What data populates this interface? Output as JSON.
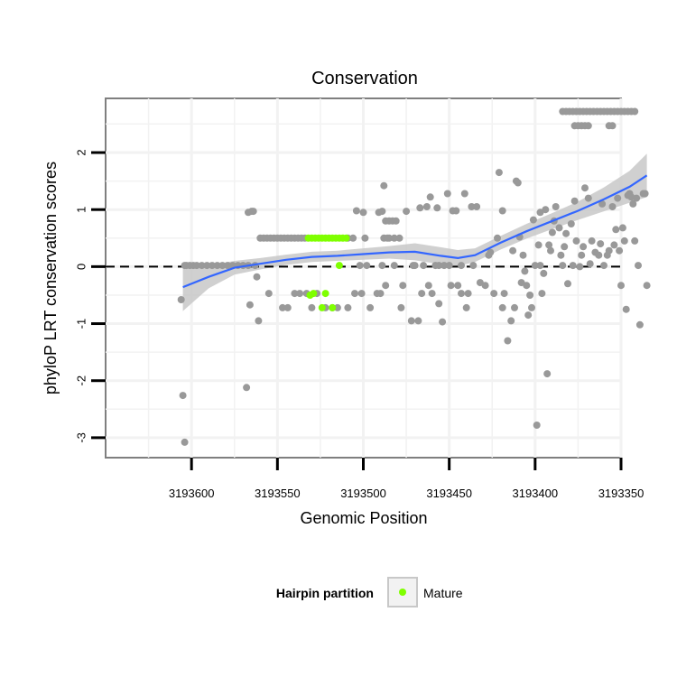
{
  "chart_data": {
    "type": "scatter",
    "title": "Conservation",
    "xlabel": "Genomic Position",
    "ylabel": "phyloP LRT conservation scores",
    "x_reversed": true,
    "xlim": [
      3193350,
      3193650
    ],
    "ylim": [
      -3.35,
      2.95
    ],
    "x_ticks": [
      3193600,
      3193550,
      3193500,
      3193450,
      3193400,
      3193350
    ],
    "y_ticks": [
      -3,
      -2,
      -1,
      0,
      1,
      2
    ],
    "grid": true,
    "reference_line": {
      "y": 0,
      "style": "dashed"
    },
    "legend": {
      "title": "Hairpin partition",
      "placement": "bottom",
      "entries": [
        {
          "label": "Mature",
          "color": "#7fff00"
        }
      ]
    },
    "colors": {
      "points": "#999999",
      "mature": "#7fff00",
      "smooth": "#3366ff",
      "band": "#c8c8c8",
      "panel": "#ffffff",
      "grid": "#f2f2f2",
      "border": "#7f7f7f"
    },
    "series": [
      {
        "kind": "points",
        "color": "#999999",
        "points": [
          [
            3193606,
            -0.58
          ],
          [
            3193605,
            -2.26
          ],
          [
            3193604,
            -3.08
          ],
          [
            3193604,
            0.02
          ],
          [
            3193603,
            0.02
          ],
          [
            3193601,
            0.02
          ],
          [
            3193599,
            0.02
          ],
          [
            3193597,
            0.02
          ],
          [
            3193594,
            0.02
          ],
          [
            3193591,
            0.02
          ],
          [
            3193588,
            0.02
          ],
          [
            3193585,
            0.02
          ],
          [
            3193582,
            0.02
          ],
          [
            3193579,
            0.02
          ],
          [
            3193576,
            0.02
          ],
          [
            3193573,
            0.02
          ],
          [
            3193570,
            0.02
          ],
          [
            3193567,
            0.02
          ],
          [
            3193568,
            -2.12
          ],
          [
            3193567,
            0.95
          ],
          [
            3193566,
            -0.67
          ],
          [
            3193565,
            0.97
          ],
          [
            3193564,
            0.97
          ],
          [
            3193562,
            -0.18
          ],
          [
            3193561,
            -0.95
          ],
          [
            3193563,
            0.02
          ],
          [
            3193560,
            0.5
          ],
          [
            3193558,
            0.5
          ],
          [
            3193556,
            0.5
          ],
          [
            3193554,
            0.5
          ],
          [
            3193552,
            0.5
          ],
          [
            3193550,
            0.5
          ],
          [
            3193548,
            0.5
          ],
          [
            3193546,
            0.5
          ],
          [
            3193544,
            0.5
          ],
          [
            3193542,
            0.5
          ],
          [
            3193540,
            0.5
          ],
          [
            3193538,
            0.5
          ],
          [
            3193536,
            0.5
          ],
          [
            3193534,
            0.5
          ],
          [
            3193555,
            -0.47
          ],
          [
            3193547,
            -0.72
          ],
          [
            3193544,
            -0.72
          ],
          [
            3193540,
            -0.47
          ],
          [
            3193537,
            -0.47
          ],
          [
            3193533,
            -0.47
          ],
          [
            3193530,
            -0.72
          ],
          [
            3193527,
            -0.47
          ],
          [
            3193522,
            -0.72
          ],
          [
            3193518,
            -0.72
          ],
          [
            3193515,
            -0.72
          ],
          [
            3193509,
            0.5
          ],
          [
            3193506,
            0.5
          ],
          [
            3193502,
            0.02
          ],
          [
            3193509,
            -0.72
          ],
          [
            3193505,
            -0.47
          ],
          [
            3193501,
            -0.47
          ],
          [
            3193496,
            -0.72
          ],
          [
            3193492,
            -0.47
          ],
          [
            3193490,
            -0.47
          ],
          [
            3193487,
            -0.33
          ],
          [
            3193488,
            0.5
          ],
          [
            3193485,
            0.5
          ],
          [
            3193482,
            0.5
          ],
          [
            3193479,
            0.5
          ],
          [
            3193504,
            0.98
          ],
          [
            3193500,
            0.95
          ],
          [
            3193499,
            0.5
          ],
          [
            3193498,
            0.02
          ],
          [
            3193491,
            0.95
          ],
          [
            3193489,
            0.97
          ],
          [
            3193489,
            0.02
          ],
          [
            3193488,
            1.42
          ],
          [
            3193487,
            0.8
          ],
          [
            3193486,
            0.5
          ],
          [
            3193485,
            0.8
          ],
          [
            3193483,
            0.8
          ],
          [
            3193482,
            0.02
          ],
          [
            3193481,
            0.8
          ],
          [
            3193478,
            -0.72
          ],
          [
            3193477,
            -0.33
          ],
          [
            3193475,
            0.97
          ],
          [
            3193472,
            -0.95
          ],
          [
            3193471,
            0.02
          ],
          [
            3193470,
            0.02
          ],
          [
            3193467,
            1.03
          ],
          [
            3193468,
            -0.95
          ],
          [
            3193466,
            -0.47
          ],
          [
            3193465,
            0.02
          ],
          [
            3193463,
            1.05
          ],
          [
            3193462,
            -0.33
          ],
          [
            3193461,
            1.22
          ],
          [
            3193460,
            -0.47
          ],
          [
            3193457,
            1.03
          ],
          [
            3193458,
            0.02
          ],
          [
            3193456,
            0.02
          ],
          [
            3193456,
            -0.65
          ],
          [
            3193454,
            -0.97
          ],
          [
            3193453,
            0.02
          ],
          [
            3193451,
            1.28
          ],
          [
            3193450,
            0.02
          ],
          [
            3193449,
            -0.33
          ],
          [
            3193448,
            0.98
          ],
          [
            3193446,
            0.98
          ],
          [
            3193445,
            -0.33
          ],
          [
            3193443,
            -0.47
          ],
          [
            3193443,
            0.02
          ],
          [
            3193441,
            1.28
          ],
          [
            3193440,
            -0.72
          ],
          [
            3193439,
            -0.47
          ],
          [
            3193437,
            1.05
          ],
          [
            3193436,
            0.02
          ],
          [
            3193434,
            1.05
          ],
          [
            3193432,
            -0.28
          ],
          [
            3193429,
            -0.33
          ],
          [
            3193427,
            0.2
          ],
          [
            3193426,
            0.25
          ],
          [
            3193424,
            -0.47
          ],
          [
            3193422,
            0.5
          ],
          [
            3193421,
            1.65
          ],
          [
            3193419,
            -0.72
          ],
          [
            3193419,
            0.98
          ],
          [
            3193418,
            -0.47
          ],
          [
            3193416,
            -1.3
          ],
          [
            3193414,
            -0.95
          ],
          [
            3193413,
            0.28
          ],
          [
            3193412,
            -0.72
          ],
          [
            3193411,
            1.5
          ],
          [
            3193410,
            1.47
          ],
          [
            3193409,
            0.52
          ],
          [
            3193408,
            -0.28
          ],
          [
            3193407,
            0.2
          ],
          [
            3193406,
            -0.08
          ],
          [
            3193405,
            -0.33
          ],
          [
            3193404,
            -0.85
          ],
          [
            3193403,
            -0.5
          ],
          [
            3193402,
            -0.72
          ],
          [
            3193401,
            0.82
          ],
          [
            3193400,
            0.02
          ],
          [
            3193399,
            -2.78
          ],
          [
            3193398,
            0.38
          ],
          [
            3193397,
            0.02
          ],
          [
            3193397,
            0.95
          ],
          [
            3193396,
            -0.47
          ],
          [
            3193395,
            -0.12
          ],
          [
            3193394,
            1.0
          ],
          [
            3193393,
            -1.88
          ],
          [
            3193392,
            0.38
          ],
          [
            3193391,
            0.28
          ],
          [
            3193390,
            0.6
          ],
          [
            3193389,
            0.8
          ],
          [
            3193388,
            1.05
          ],
          [
            3193386,
            0.68
          ],
          [
            3193385,
            0.2
          ],
          [
            3193384,
            0.02
          ],
          [
            3193383,
            0.35
          ],
          [
            3193382,
            0.58
          ],
          [
            3193381,
            -0.3
          ],
          [
            3193379,
            0.75
          ],
          [
            3193378,
            0.02
          ],
          [
            3193377,
            1.15
          ],
          [
            3193376,
            0.45
          ],
          [
            3193374,
            0.0
          ],
          [
            3193373,
            0.2
          ],
          [
            3193372,
            0.35
          ],
          [
            3193371,
            1.38
          ],
          [
            3193369,
            1.2
          ],
          [
            3193368,
            0.05
          ],
          [
            3193367,
            0.45
          ],
          [
            3193365,
            0.25
          ],
          [
            3193363,
            0.2
          ],
          [
            3193362,
            0.4
          ],
          [
            3193361,
            1.1
          ],
          [
            3193360,
            0.02
          ],
          [
            3193358,
            0.2
          ],
          [
            3193357,
            0.28
          ],
          [
            3193355,
            1.05
          ],
          [
            3193354,
            0.38
          ],
          [
            3193353,
            0.65
          ],
          [
            3193352,
            1.2
          ],
          [
            3193351,
            0.28
          ],
          [
            3193350,
            -0.33
          ],
          [
            3193349,
            0.68
          ],
          [
            3193348,
            0.45
          ],
          [
            3193347,
            -0.75
          ],
          [
            3193346,
            1.25
          ],
          [
            3193345,
            1.28
          ],
          [
            3193344,
            1.22
          ],
          [
            3193343,
            1.1
          ],
          [
            3193342,
            0.45
          ],
          [
            3193341,
            1.2
          ],
          [
            3193340,
            0.02
          ],
          [
            3193339,
            -1.02
          ],
          [
            3193337,
            1.28
          ],
          [
            3193336,
            1.28
          ],
          [
            3193335,
            -0.33
          ],
          [
            3193384,
            2.72
          ],
          [
            3193382,
            2.72
          ],
          [
            3193380,
            2.72
          ],
          [
            3193378,
            2.72
          ],
          [
            3193376,
            2.72
          ],
          [
            3193374,
            2.72
          ],
          [
            3193372,
            2.72
          ],
          [
            3193370,
            2.72
          ],
          [
            3193368,
            2.72
          ],
          [
            3193366,
            2.72
          ],
          [
            3193364,
            2.72
          ],
          [
            3193362,
            2.72
          ],
          [
            3193360,
            2.72
          ],
          [
            3193358,
            2.72
          ],
          [
            3193356,
            2.72
          ],
          [
            3193354,
            2.72
          ],
          [
            3193352,
            2.72
          ],
          [
            3193350,
            2.72
          ],
          [
            3193348,
            2.72
          ],
          [
            3193346,
            2.72
          ],
          [
            3193344,
            2.72
          ],
          [
            3193342,
            2.72
          ],
          [
            3193377,
            2.47
          ],
          [
            3193375,
            2.47
          ],
          [
            3193373,
            2.47
          ],
          [
            3193371,
            2.47
          ],
          [
            3193369,
            2.47
          ],
          [
            3193357,
            2.47
          ],
          [
            3193355,
            2.47
          ]
        ]
      },
      {
        "kind": "points",
        "name": "Mature",
        "color": "#7fff00",
        "points": [
          [
            3193532,
            0.5
          ],
          [
            3193530,
            0.5
          ],
          [
            3193528,
            0.5
          ],
          [
            3193526,
            0.5
          ],
          [
            3193524,
            0.5
          ],
          [
            3193522,
            0.5
          ],
          [
            3193520,
            0.5
          ],
          [
            3193518,
            0.5
          ],
          [
            3193516,
            0.5
          ],
          [
            3193514,
            0.5
          ],
          [
            3193512,
            0.5
          ],
          [
            3193510,
            0.5
          ],
          [
            3193531,
            -0.5
          ],
          [
            3193529,
            -0.47
          ],
          [
            3193524,
            -0.72
          ],
          [
            3193522,
            -0.47
          ],
          [
            3193518,
            -0.72
          ],
          [
            3193514,
            0.02
          ]
        ]
      },
      {
        "kind": "smooth",
        "color": "#3366ff",
        "x": [
          3193605,
          3193590,
          3193575,
          3193560,
          3193545,
          3193530,
          3193515,
          3193500,
          3193485,
          3193470,
          3193455,
          3193445,
          3193435,
          3193420,
          3193405,
          3193390,
          3193375,
          3193360,
          3193345,
          3193335
        ],
        "y": [
          -0.36,
          -0.18,
          -0.02,
          0.05,
          0.12,
          0.17,
          0.19,
          0.22,
          0.25,
          0.26,
          0.19,
          0.15,
          0.2,
          0.42,
          0.62,
          0.8,
          0.98,
          1.18,
          1.4,
          1.6
        ],
        "lower": [
          -0.78,
          -0.38,
          -0.14,
          -0.05,
          0.03,
          0.08,
          0.1,
          0.12,
          0.14,
          0.11,
          0.04,
          0.01,
          0.08,
          0.3,
          0.49,
          0.66,
          0.82,
          0.97,
          1.12,
          1.22
        ],
        "upper": [
          0.06,
          0.02,
          0.1,
          0.15,
          0.21,
          0.26,
          0.28,
          0.32,
          0.36,
          0.41,
          0.34,
          0.29,
          0.32,
          0.54,
          0.75,
          0.94,
          1.14,
          1.39,
          1.68,
          1.98
        ]
      }
    ]
  }
}
